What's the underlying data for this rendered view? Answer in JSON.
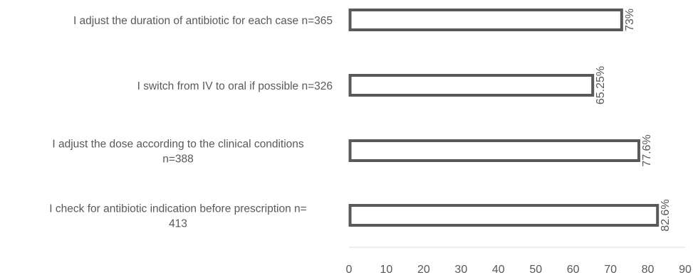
{
  "chart_data": {
    "type": "bar",
    "orientation": "horizontal",
    "title": "",
    "xlabel": "",
    "ylabel": "",
    "categories": [
      [
        "I adjust the duration of antibiotic for each case  n=365"
      ],
      [
        "I switch from IV to oral if possible  n=326"
      ],
      [
        "I adjust the dose according to the clinical conditions",
        "n=388"
      ],
      [
        "I check for antibiotic indication before prescription n=",
        "413"
      ]
    ],
    "values": [
      73,
      65.25,
      77.6,
      82.6
    ],
    "data_labels": [
      "73%",
      "65.25%",
      "77.6%",
      "82.6%"
    ],
    "xlim": [
      0,
      90
    ],
    "xticks": [
      0,
      10,
      20,
      30,
      40,
      50,
      60,
      70,
      80,
      90
    ],
    "grid": false,
    "legend": "none",
    "bar_style": "outline",
    "colors": {
      "bar_stroke": "#595959",
      "bar_fill": "#ffffff",
      "text": "#595959",
      "axis": "#d9d9d9"
    }
  }
}
